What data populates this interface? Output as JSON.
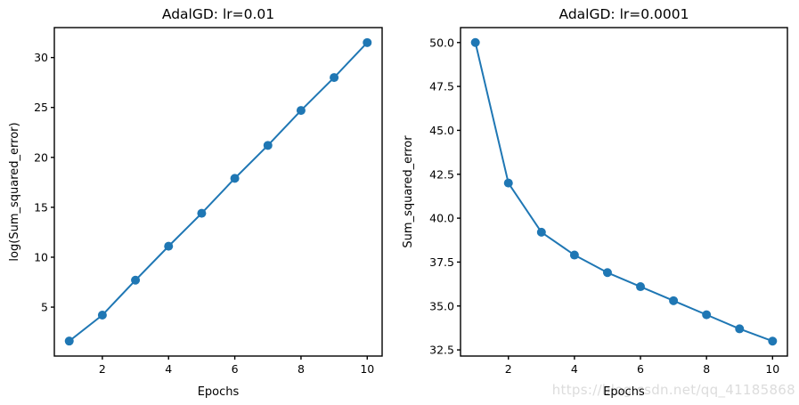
{
  "figure": {
    "watermark": "https://blog.csdn.net/qq_41185868"
  },
  "colors": {
    "line": "#1f77b4",
    "marker": "#1f77b4",
    "axis": "#000000",
    "background": "#ffffff",
    "watermark": "#dcdcdc"
  },
  "chart_data": [
    {
      "type": "line",
      "title": "AdalGD: lr=0.01",
      "xlabel": "Epochs",
      "ylabel": "log(Sum_squared_error)",
      "x": [
        1,
        2,
        3,
        4,
        5,
        6,
        7,
        8,
        9,
        10
      ],
      "y": [
        1.6,
        4.2,
        7.7,
        11.1,
        14.4,
        17.9,
        21.2,
        24.7,
        28.0,
        31.5
      ],
      "xticks": [
        2,
        4,
        6,
        8,
        10
      ],
      "xtick_labels": [
        "2",
        "4",
        "6",
        "8",
        "10"
      ],
      "yticks": [
        5,
        10,
        15,
        20,
        25,
        30
      ],
      "ytick_labels": [
        "5",
        "10",
        "15",
        "20",
        "25",
        "30"
      ],
      "xlim": [
        0.55,
        10.45
      ],
      "ylim": [
        0.1,
        33.0
      ],
      "marker": "o",
      "grid": false,
      "legend": null
    },
    {
      "type": "line",
      "title": "AdalGD: lr=0.0001",
      "xlabel": "Epochs",
      "ylabel": "Sum_squared_error",
      "x": [
        1,
        2,
        3,
        4,
        5,
        6,
        7,
        8,
        9,
        10
      ],
      "y": [
        50.0,
        42.0,
        39.2,
        37.9,
        36.9,
        36.1,
        35.3,
        34.5,
        33.7,
        33.0
      ],
      "xticks": [
        2,
        4,
        6,
        8,
        10
      ],
      "xtick_labels": [
        "2",
        "4",
        "6",
        "8",
        "10"
      ],
      "yticks": [
        32.5,
        35.0,
        37.5,
        40.0,
        42.5,
        45.0,
        47.5,
        50.0
      ],
      "ytick_labels": [
        "32.5",
        "35.0",
        "37.5",
        "40.0",
        "42.5",
        "45.0",
        "47.5",
        "50.0"
      ],
      "xlim": [
        0.55,
        10.45
      ],
      "ylim": [
        32.15,
        50.85
      ],
      "marker": "o",
      "grid": false,
      "legend": null
    }
  ]
}
